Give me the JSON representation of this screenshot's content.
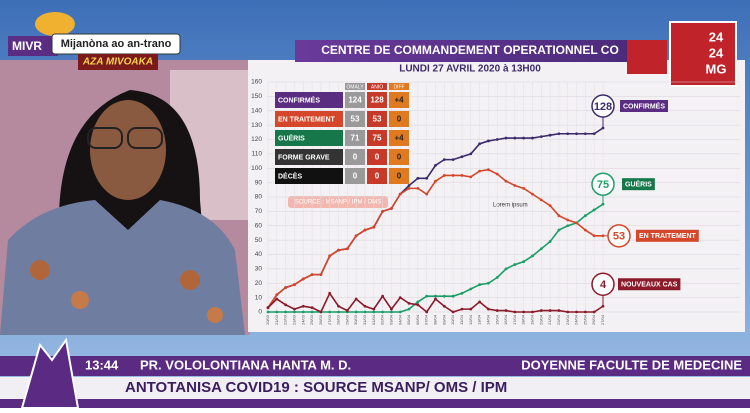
{
  "header": {
    "channel": "MIVR",
    "slogan": "Mijanòna ao an-trano",
    "slogan_sub": "AZA MIVOAKA",
    "logo_top": "24",
    "logo_mid": "24",
    "logo_bottom": "MG"
  },
  "chart_data": {
    "type": "line",
    "title": "CENTRE DE COMMANDEMENT OPERATIONNEL CO",
    "subtitle": "LUNDI 27 AVRIL 2020 à 13H00",
    "annotation": "Lorem ipsum",
    "source": "SOURCE : MSANP / IPM / OMS",
    "categories": [
      "20/03",
      "21/03",
      "22/03",
      "23/03",
      "24/03",
      "25/03",
      "26/03",
      "27/03",
      "28/03",
      "29/03",
      "30/03",
      "31/03",
      "01/04",
      "02/04",
      "03/04",
      "04/04",
      "05/04",
      "06/04",
      "07/04",
      "08/04",
      "09/04",
      "10/04",
      "11/04",
      "12/04",
      "13/04",
      "14/04",
      "15/04",
      "16/04",
      "17/04",
      "18/04",
      "19/04",
      "20/04",
      "21/04",
      "22/04",
      "23/04",
      "24/04",
      "25/04",
      "26/04",
      "27/04"
    ],
    "series": [
      {
        "name": "CONFIRMÉS",
        "color": "#3b2b6b",
        "label_color": "#5a2d82",
        "values": [
          3,
          12,
          17,
          19,
          23,
          26,
          26,
          39,
          43,
          44,
          53,
          57,
          59,
          70,
          72,
          82,
          88,
          93,
          93,
          102,
          106,
          106,
          108,
          110,
          117,
          119,
          120,
          121,
          121,
          121,
          121,
          122,
          123,
          124,
          124,
          124,
          124,
          124,
          128
        ]
      },
      {
        "name": "GUÉRIS",
        "color": "#1b9e68",
        "label_color": "#16784a",
        "values": [
          0,
          0,
          0,
          0,
          0,
          0,
          0,
          0,
          0,
          0,
          0,
          0,
          0,
          0,
          0,
          0,
          2,
          7,
          11,
          11,
          11,
          11,
          13,
          16,
          19,
          20,
          24,
          30,
          33,
          35,
          39,
          44,
          49,
          57,
          60,
          62,
          67,
          71,
          75
        ]
      },
      {
        "name": "EN TRAITEMENT",
        "color": "#d4472a",
        "label_color": "#d4472a",
        "values": [
          3,
          12,
          17,
          19,
          23,
          26,
          26,
          39,
          43,
          44,
          53,
          57,
          59,
          70,
          72,
          82,
          86,
          86,
          82,
          91,
          95,
          95,
          95,
          94,
          98,
          99,
          96,
          91,
          88,
          86,
          82,
          78,
          74,
          67,
          64,
          62,
          57,
          53,
          53
        ]
      },
      {
        "name": "NOUVEAUX CAS",
        "color": "#8b1a2a",
        "label_color": "#8b1a2a",
        "values": [
          3,
          9,
          5,
          2,
          4,
          3,
          0,
          13,
          4,
          1,
          9,
          4,
          2,
          11,
          2,
          10,
          6,
          5,
          0,
          9,
          4,
          0,
          2,
          2,
          7,
          2,
          1,
          1,
          0,
          0,
          0,
          1,
          1,
          1,
          0,
          0,
          0,
          0,
          4
        ]
      }
    ],
    "ylim": [
      0,
      160
    ],
    "yticks": [
      0,
      10,
      20,
      30,
      40,
      50,
      60,
      70,
      80,
      90,
      100,
      110,
      120,
      130,
      140,
      150,
      160
    ],
    "grid": true
  },
  "stats_table": {
    "columns": [
      "OMALY",
      "ANIO",
      "DIFF"
    ],
    "rows": [
      {
        "label": "CONFIRMÉS",
        "cells": [
          124,
          128,
          "+4"
        ]
      },
      {
        "label": "EN TRAITEMENT",
        "cells": [
          53,
          53,
          0
        ]
      },
      {
        "label": "GUÉRIS",
        "cells": [
          71,
          75,
          "+4"
        ]
      },
      {
        "label": "FORME GRAVE",
        "cells": [
          0,
          0,
          0
        ]
      },
      {
        "label": "DÉCÈS",
        "cells": [
          0,
          0,
          0
        ]
      }
    ]
  },
  "lower_third": {
    "time": "13:44",
    "name": "PR. VOLOLONTIANA  HANTA M. D.",
    "role": "DOYENNE FACULTE DE MEDECINE",
    "ticker": "ANTOTANISA COVID19 : SOURCE MSANP/ OMS / IPM"
  }
}
